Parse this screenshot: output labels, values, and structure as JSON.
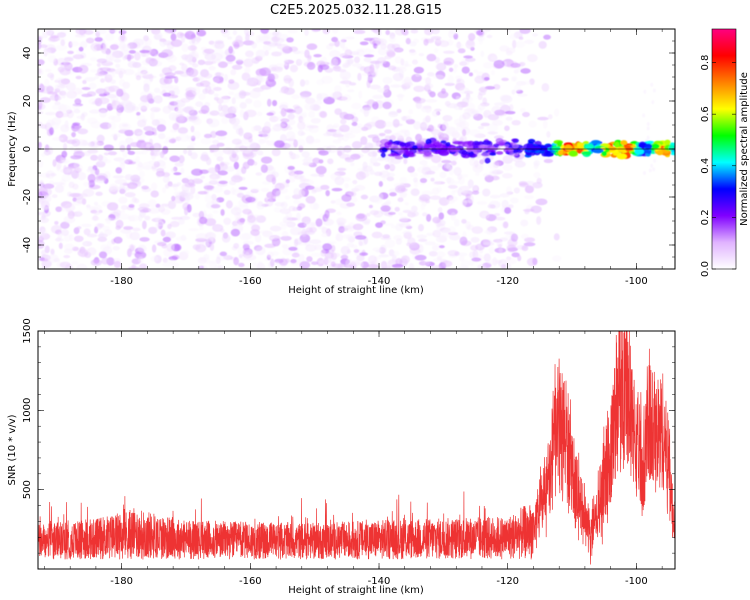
{
  "title": "C2E5.2025.032.11.28.G15",
  "chart_data": [
    {
      "type": "heatmap",
      "xlabel": "Height of straight line (km)",
      "ylabel": "Frequency (Hz)",
      "xlim": [
        -193,
        -94
      ],
      "ylim": [
        -50,
        50
      ],
      "x_ticks": [
        -180,
        -160,
        -140,
        -120,
        -100
      ],
      "y_ticks": [
        -40,
        -20,
        0,
        20,
        40
      ],
      "colorbar": {
        "label": "Normalized spectral amplitude",
        "range": [
          0,
          0.93
        ],
        "ticks": [
          0.0,
          0.2,
          0.4,
          0.6,
          0.8
        ],
        "colormap": [
          "#ffffff",
          "#e0b3ff",
          "#8000ff",
          "#0000ff",
          "#00ffff",
          "#00ff00",
          "#ffff00",
          "#ff8000",
          "#ff0000",
          "#ff0080"
        ]
      },
      "features": [
        {
          "x_range": [
            -193,
            -113
          ],
          "freq_range": [
            -50,
            50
          ],
          "amplitude": "0.02-0.15 (diffuse noise)"
        },
        {
          "x_range": [
            -140,
            -118
          ],
          "freq_center": 0,
          "freq_halfwidth": 3,
          "amplitude": "0.15-0.30"
        },
        {
          "x_range": [
            -117,
            -94
          ],
          "freq_center": 0,
          "freq_halfwidth": 2,
          "amplitude": "0.30-0.90"
        }
      ],
      "grid": false
    },
    {
      "type": "line",
      "xlabel": "Height of straight line (km)",
      "ylabel": "SNR (10 * v/v)",
      "xlim": [
        -193,
        -94
      ],
      "ylim": [
        0,
        1500
      ],
      "x_ticks": [
        -180,
        -160,
        -140,
        -120,
        -100
      ],
      "y_ticks": [
        500,
        1000,
        1500
      ],
      "series": [
        {
          "color": "#ee3333",
          "x": [
            -193,
            -185,
            -178,
            -170,
            -160,
            -150,
            -140,
            -130,
            -120,
            -116,
            -114,
            -113,
            -112,
            -111,
            -110,
            -109,
            -108,
            -107,
            -106,
            -105,
            -104,
            -103,
            -102,
            -101,
            -100,
            -99,
            -98,
            -97,
            -96,
            -95,
            -94
          ],
          "y": [
            180,
            200,
            260,
            200,
            190,
            185,
            200,
            210,
            220,
            300,
            620,
            900,
            1100,
            1000,
            720,
            560,
            350,
            300,
            450,
            680,
            900,
            1300,
            1480,
            1250,
            950,
            820,
            1150,
            950,
            1100,
            800,
            300
          ]
        }
      ],
      "grid": false
    }
  ]
}
